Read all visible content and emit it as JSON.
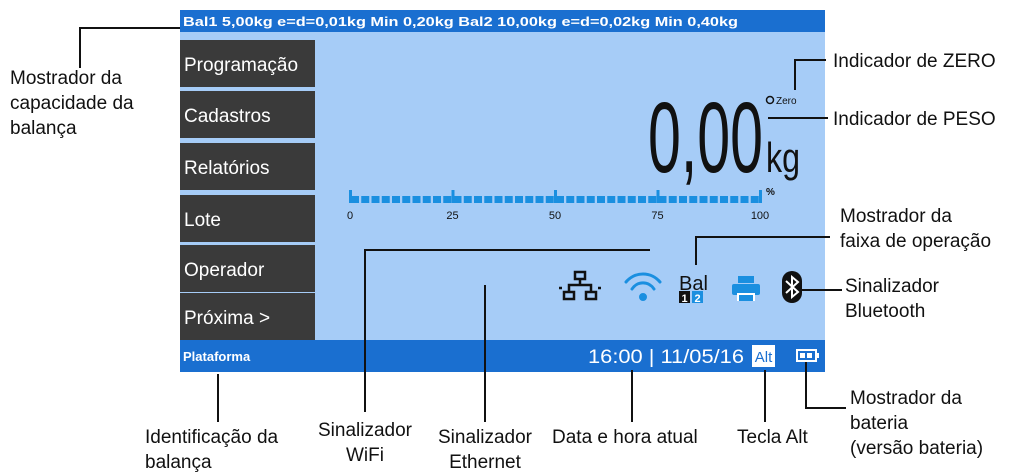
{
  "screen": {
    "header": "Bal1 5,00kg e=d=0,01kg Min 0,20kg Bal2 10,00kg e=d=0,02kg Min 0,40kg",
    "menu": [
      "Programação",
      "Cadastros",
      "Relatórios",
      "Lote",
      "Operador",
      "Próxima  >"
    ],
    "weight": "0,00",
    "unit": "kg",
    "zero": "Zero",
    "bargraph": {
      "ticks": [
        "0",
        "25",
        "50",
        "75",
        "100"
      ],
      "unit": "%"
    },
    "range_icon": {
      "label": "Bal",
      "ranges": [
        "1",
        "2"
      ]
    },
    "footer": {
      "platform": "Plataforma",
      "datetime": "16:00 | 11/05/16",
      "alt": "Alt"
    }
  },
  "annotations": [
    {
      "lines": [
        "Mostrador da",
        "capacidade da",
        "balança"
      ]
    },
    {
      "lines": [
        "Indicador de ZERO"
      ]
    },
    {
      "lines": [
        "Indicador de PESO"
      ]
    },
    {
      "lines": [
        "Mostrador da",
        "faixa de operação"
      ]
    },
    {
      "lines": [
        "Sinalizador",
        "Bluetooth"
      ]
    },
    {
      "lines": [
        "Mostrador da",
        "bateria",
        "(versão bateria)"
      ]
    },
    {
      "lines": [
        "Tecla Alt"
      ]
    },
    {
      "lines": [
        "Data e hora atual"
      ]
    },
    {
      "lines": [
        "Sinalizador",
        "Ethernet"
      ]
    },
    {
      "lines": [
        "Sinalizador",
        "WiFi"
      ]
    },
    {
      "lines": [
        "Identificação da",
        "balança"
      ]
    }
  ]
}
